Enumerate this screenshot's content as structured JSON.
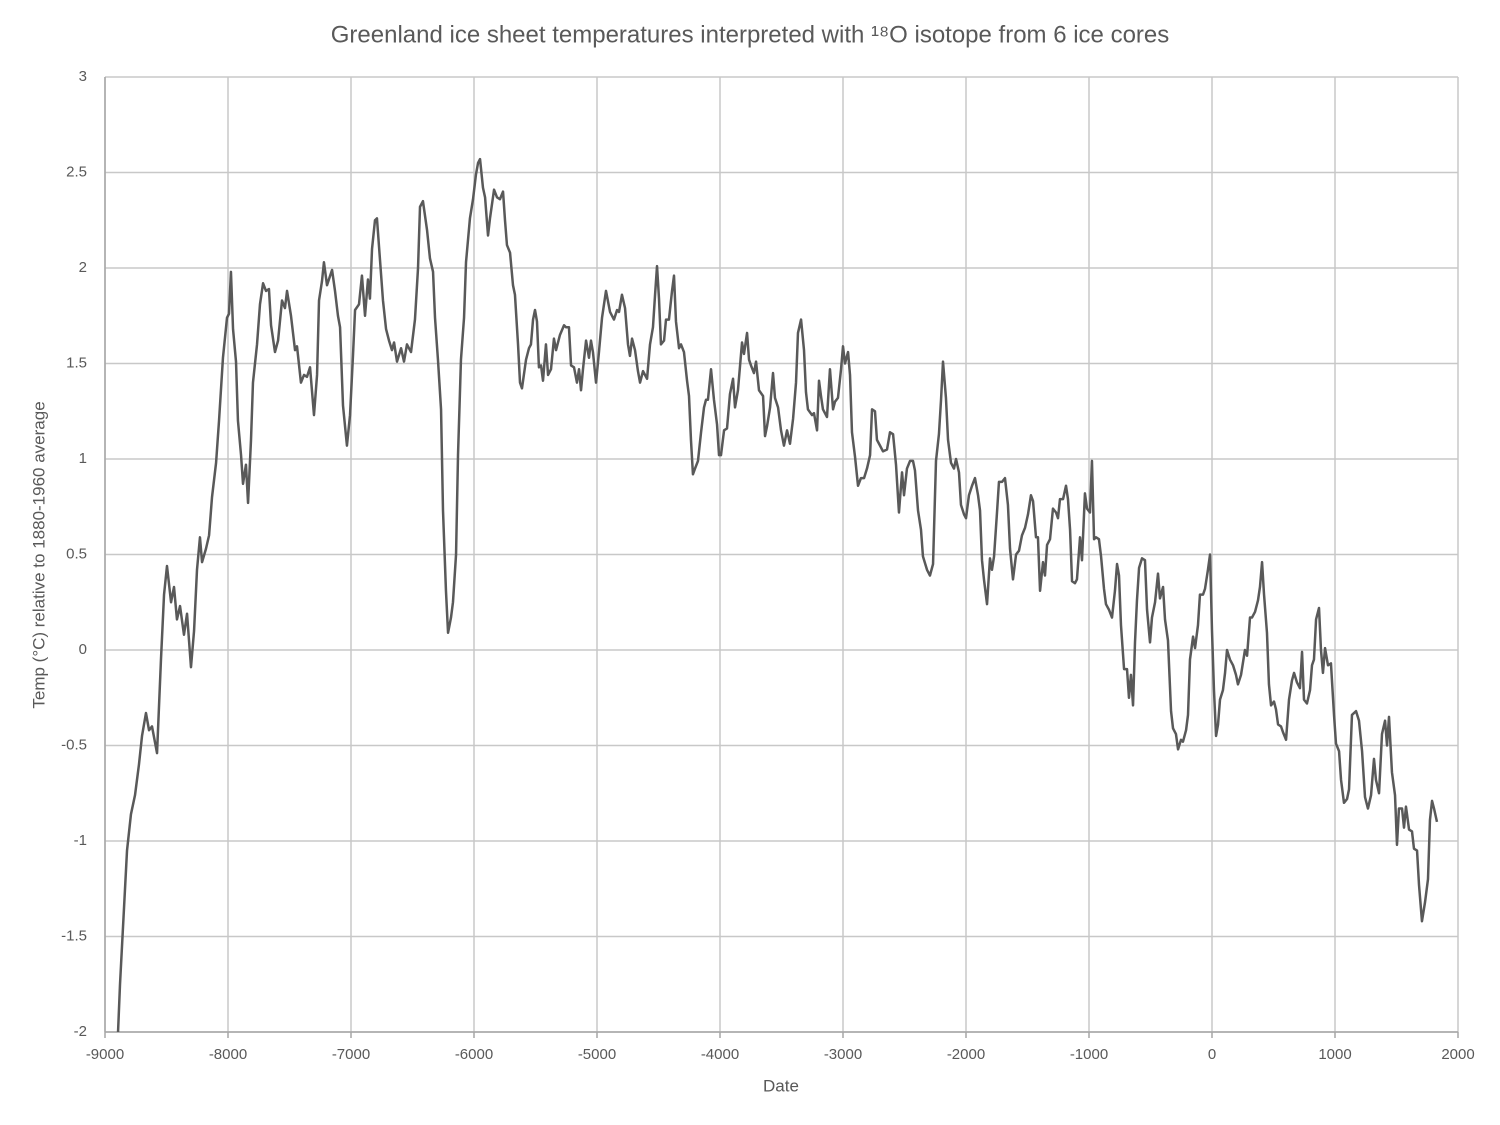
{
  "chart_data": {
    "type": "line",
    "title": "Greenland ice sheet temperatures interpreted with ¹⁸O isotope from 6 ice cores",
    "xlabel": "Date",
    "ylabel": "Temp (°C) relative to 1880-1960 average",
    "color": "#595959",
    "grid": true,
    "xlim": [
      -9000,
      2000
    ],
    "xticks": [
      -9000,
      -8000,
      -7000,
      -6000,
      -5000,
      -4000,
      -3000,
      -2000,
      -1000,
      0,
      1000,
      2000
    ],
    "ylim": [
      -2,
      3
    ],
    "yticks": [
      -2,
      -1.5,
      -1,
      -0.5,
      0,
      0.5,
      1,
      1.5,
      2,
      2.5,
      3
    ],
    "x": [
      -8894,
      -8878,
      -8821,
      -8789,
      -8756,
      -8724,
      -8699,
      -8667,
      -8642,
      -8618,
      -8577,
      -8545,
      -8520,
      -8496,
      -8463,
      -8439,
      -8415,
      -8390,
      -8358,
      -8333,
      -8301,
      -8276,
      -8252,
      -8228,
      -8211,
      -8179,
      -8154,
      -8130,
      -8097,
      -8073,
      -8041,
      -8008,
      -7992,
      -7976,
      -7959,
      -7935,
      -7919,
      -7894,
      -7878,
      -7854,
      -7837,
      -7813,
      -7797,
      -7764,
      -7740,
      -7715,
      -7691,
      -7667,
      -7650,
      -7618,
      -7593,
      -7561,
      -7537,
      -7520,
      -7488,
      -7455,
      -7439,
      -7407,
      -7382,
      -7358,
      -7333,
      -7301,
      -7276,
      -7260,
      -7236,
      -7220,
      -7195,
      -7154,
      -7130,
      -7106,
      -7089,
      -7065,
      -7033,
      -7008,
      -6984,
      -6967,
      -6935,
      -6911,
      -6886,
      -6862,
      -6846,
      -6829,
      -6805,
      -6789,
      -6764,
      -6740,
      -6715,
      -6691,
      -6667,
      -6650,
      -6626,
      -6593,
      -6569,
      -6545,
      -6512,
      -6480,
      -6455,
      -6439,
      -6415,
      -6382,
      -6358,
      -6333,
      -6317,
      -6293,
      -6268,
      -6252,
      -6228,
      -6211,
      -6187,
      -6171,
      -6146,
      -6130,
      -6106,
      -6081,
      -6065,
      -6033,
      -6008,
      -5984,
      -5967,
      -5951,
      -5927,
      -5910,
      -5886,
      -5870,
      -5837,
      -5813,
      -5789,
      -5764,
      -5748,
      -5732,
      -5707,
      -5683,
      -5667,
      -5642,
      -5626,
      -5610,
      -5577,
      -5553,
      -5537,
      -5520,
      -5504,
      -5488,
      -5472,
      -5455,
      -5439,
      -5415,
      -5398,
      -5374,
      -5350,
      -5333,
      -5301,
      -5268,
      -5252,
      -5228,
      -5211,
      -5187,
      -5163,
      -5146,
      -5130,
      -5114,
      -5089,
      -5065,
      -5049,
      -5033,
      -5008,
      -4984,
      -4959,
      -4927,
      -4894,
      -4862,
      -4837,
      -4821,
      -4797,
      -4772,
      -4748,
      -4732,
      -4715,
      -4691,
      -4667,
      -4650,
      -4626,
      -4593,
      -4569,
      -4545,
      -4528,
      -4512,
      -4496,
      -4480,
      -4455,
      -4439,
      -4415,
      -4390,
      -4374,
      -4358,
      -4333,
      -4317,
      -4293,
      -4268,
      -4252,
      -4236,
      -4220,
      -4203,
      -4179,
      -4154,
      -4130,
      -4114,
      -4098,
      -4073,
      -4049,
      -4024,
      -4008,
      -3992,
      -3967,
      -3943,
      -3919,
      -3894,
      -3878,
      -3854,
      -3821,
      -3805,
      -3780,
      -3764,
      -3748,
      -3724,
      -3707,
      -3683,
      -3650,
      -3634,
      -3618,
      -3593,
      -3569,
      -3553,
      -3528,
      -3504,
      -3480,
      -3455,
      -3431,
      -3406,
      -3382,
      -3366,
      -3341,
      -3317,
      -3301,
      -3285,
      -3252,
      -3236,
      -3211,
      -3195,
      -3179,
      -3163,
      -3130,
      -3106,
      -3081,
      -3065,
      -3041,
      -3016,
      -3000,
      -2984,
      -2959,
      -2943,
      -2927,
      -2902,
      -2878,
      -2854,
      -2829,
      -2805,
      -2780,
      -2764,
      -2740,
      -2724,
      -2699,
      -2675,
      -2642,
      -2618,
      -2593,
      -2569,
      -2545,
      -2520,
      -2504,
      -2480,
      -2455,
      -2431,
      -2415,
      -2390,
      -2366,
      -2350,
      -2317,
      -2293,
      -2268,
      -2244,
      -2220,
      -2203,
      -2187,
      -2163,
      -2146,
      -2122,
      -2098,
      -2081,
      -2057,
      -2041,
      -2016,
      -2000,
      -1976,
      -1951,
      -1927,
      -1902,
      -1886,
      -1870,
      -1854,
      -1829,
      -1805,
      -1789,
      -1772,
      -1748,
      -1732,
      -1707,
      -1683,
      -1659,
      -1642,
      -1618,
      -1593,
      -1569,
      -1545,
      -1520,
      -1496,
      -1472,
      -1455,
      -1431,
      -1415,
      -1398,
      -1374,
      -1358,
      -1341,
      -1317,
      -1293,
      -1268,
      -1252,
      -1236,
      -1211,
      -1187,
      -1171,
      -1154,
      -1138,
      -1114,
      -1098,
      -1073,
      -1057,
      -1033,
      -1016,
      -992,
      -976,
      -959,
      -943,
      -919,
      -902,
      -878,
      -862,
      -837,
      -813,
      -789,
      -772,
      -756,
      -740,
      -715,
      -691,
      -675,
      -659,
      -642,
      -626,
      -610,
      -593,
      -569,
      -545,
      -528,
      -504,
      -488,
      -463,
      -439,
      -423,
      -398,
      -382,
      -358,
      -333,
      -317,
      -293,
      -276,
      -252,
      -236,
      -211,
      -195,
      -179,
      -154,
      -138,
      -114,
      -98,
      -73,
      -57,
      -33,
      -16,
      0,
      16,
      33,
      49,
      65,
      89,
      106,
      122,
      146,
      171,
      195,
      211,
      236,
      268,
      285,
      309,
      325,
      350,
      374,
      390,
      407,
      423,
      447,
      463,
      480,
      504,
      520,
      537,
      561,
      577,
      602,
      626,
      650,
      667,
      691,
      715,
      732,
      748,
      772,
      797,
      813,
      829,
      846,
      870,
      886,
      902,
      919,
      943,
      967,
      992,
      1008,
      1033,
      1049,
      1073,
      1098,
      1114,
      1138,
      1171,
      1195,
      1220,
      1244,
      1268,
      1293,
      1317,
      1333,
      1358,
      1382,
      1407,
      1423,
      1439,
      1463,
      1488,
      1504,
      1520,
      1545,
      1561,
      1577,
      1602,
      1626,
      1642,
      1667,
      1683,
      1707,
      1732,
      1756,
      1772,
      1789,
      1805,
      1829
    ],
    "values": [
      -2,
      -1.75,
      -1.05,
      -0.86,
      -0.76,
      -0.6,
      -0.45,
      -0.33,
      -0.42,
      -0.4,
      -0.54,
      -0.05,
      0.29,
      0.44,
      0.25,
      0.33,
      0.16,
      0.23,
      0.08,
      0.19,
      -0.09,
      0.1,
      0.42,
      0.59,
      0.46,
      0.53,
      0.6,
      0.8,
      0.98,
      1.2,
      1.53,
      1.74,
      1.76,
      1.98,
      1.68,
      1.51,
      1.2,
      1.02,
      0.87,
      0.97,
      0.77,
      1.1,
      1.4,
      1.6,
      1.81,
      1.92,
      1.88,
      1.89,
      1.7,
      1.56,
      1.62,
      1.83,
      1.79,
      1.88,
      1.75,
      1.57,
      1.59,
      1.4,
      1.44,
      1.43,
      1.48,
      1.23,
      1.44,
      1.83,
      1.93,
      2.03,
      1.91,
      1.99,
      1.88,
      1.75,
      1.69,
      1.28,
      1.07,
      1.23,
      1.54,
      1.78,
      1.81,
      1.96,
      1.75,
      1.94,
      1.84,
      2.1,
      2.25,
      2.26,
      2.04,
      1.83,
      1.68,
      1.62,
      1.57,
      1.61,
      1.51,
      1.58,
      1.51,
      1.6,
      1.56,
      1.73,
      2.0,
      2.32,
      2.35,
      2.2,
      2.05,
      1.98,
      1.74,
      1.52,
      1.26,
      0.73,
      0.31,
      0.09,
      0.17,
      0.25,
      0.5,
      1.02,
      1.52,
      1.74,
      2.03,
      2.26,
      2.36,
      2.49,
      2.55,
      2.57,
      2.42,
      2.37,
      2.17,
      2.26,
      2.41,
      2.37,
      2.36,
      2.4,
      2.25,
      2.12,
      2.08,
      1.91,
      1.86,
      1.6,
      1.4,
      1.37,
      1.52,
      1.58,
      1.6,
      1.73,
      1.78,
      1.72,
      1.48,
      1.49,
      1.41,
      1.6,
      1.44,
      1.47,
      1.63,
      1.57,
      1.65,
      1.7,
      1.69,
      1.69,
      1.49,
      1.48,
      1.4,
      1.47,
      1.36,
      1.47,
      1.62,
      1.53,
      1.62,
      1.56,
      1.4,
      1.56,
      1.74,
      1.88,
      1.77,
      1.73,
      1.78,
      1.77,
      1.86,
      1.79,
      1.6,
      1.54,
      1.63,
      1.57,
      1.46,
      1.4,
      1.46,
      1.42,
      1.6,
      1.69,
      1.86,
      2.01,
      1.84,
      1.6,
      1.62,
      1.73,
      1.73,
      1.88,
      1.96,
      1.72,
      1.58,
      1.6,
      1.56,
      1.41,
      1.33,
      1.1,
      0.92,
      0.95,
      0.99,
      1.14,
      1.27,
      1.31,
      1.31,
      1.47,
      1.31,
      1.18,
      1.02,
      1.02,
      1.15,
      1.16,
      1.34,
      1.42,
      1.27,
      1.36,
      1.61,
      1.55,
      1.66,
      1.52,
      1.49,
      1.45,
      1.51,
      1.36,
      1.33,
      1.12,
      1.17,
      1.27,
      1.45,
      1.32,
      1.27,
      1.15,
      1.07,
      1.15,
      1.08,
      1.21,
      1.4,
      1.66,
      1.73,
      1.57,
      1.35,
      1.26,
      1.23,
      1.24,
      1.15,
      1.41,
      1.33,
      1.26,
      1.22,
      1.47,
      1.26,
      1.3,
      1.32,
      1.47,
      1.59,
      1.5,
      1.56,
      1.44,
      1.14,
      1.01,
      0.86,
      0.9,
      0.9,
      0.95,
      1.02,
      1.26,
      1.25,
      1.1,
      1.07,
      1.04,
      1.05,
      1.14,
      1.13,
      0.97,
      0.72,
      0.93,
      0.81,
      0.95,
      0.99,
      0.99,
      0.94,
      0.73,
      0.63,
      0.49,
      0.42,
      0.39,
      0.45,
      0.99,
      1.13,
      1.31,
      1.51,
      1.32,
      1.1,
      0.98,
      0.95,
      1.0,
      0.93,
      0.76,
      0.71,
      0.69,
      0.81,
      0.86,
      0.9,
      0.81,
      0.73,
      0.47,
      0.37,
      0.24,
      0.48,
      0.42,
      0.49,
      0.72,
      0.88,
      0.88,
      0.9,
      0.76,
      0.53,
      0.37,
      0.5,
      0.52,
      0.6,
      0.64,
      0.71,
      0.81,
      0.78,
      0.59,
      0.59,
      0.31,
      0.46,
      0.39,
      0.55,
      0.58,
      0.74,
      0.72,
      0.69,
      0.79,
      0.79,
      0.86,
      0.79,
      0.63,
      0.36,
      0.35,
      0.37,
      0.59,
      0.47,
      0.82,
      0.74,
      0.72,
      0.99,
      0.58,
      0.59,
      0.58,
      0.49,
      0.32,
      0.24,
      0.21,
      0.17,
      0.31,
      0.45,
      0.39,
      0.13,
      -0.1,
      -0.1,
      -0.25,
      -0.13,
      -0.29,
      0.04,
      0.26,
      0.43,
      0.48,
      0.47,
      0.21,
      0.04,
      0.17,
      0.25,
      0.4,
      0.27,
      0.33,
      0.16,
      0.05,
      -0.32,
      -0.41,
      -0.44,
      -0.52,
      -0.47,
      -0.48,
      -0.42,
      -0.34,
      -0.05,
      0.07,
      0.01,
      0.13,
      0.29,
      0.29,
      0.32,
      0.42,
      0.5,
      0.1,
      -0.21,
      -0.45,
      -0.39,
      -0.26,
      -0.21,
      -0.12,
      0.0,
      -0.05,
      -0.08,
      -0.13,
      -0.18,
      -0.13,
      0.0,
      -0.03,
      0.17,
      0.17,
      0.2,
      0.26,
      0.33,
      0.46,
      0.29,
      0.09,
      -0.18,
      -0.29,
      -0.27,
      -0.31,
      -0.39,
      -0.4,
      -0.43,
      -0.47,
      -0.26,
      -0.16,
      -0.12,
      -0.17,
      -0.2,
      -0.01,
      -0.26,
      -0.28,
      -0.21,
      -0.08,
      -0.05,
      0.16,
      0.22,
      0.0,
      -0.12,
      0.01,
      -0.08,
      -0.07,
      -0.34,
      -0.49,
      -0.53,
      -0.68,
      -0.8,
      -0.78,
      -0.73,
      -0.34,
      -0.32,
      -0.37,
      -0.53,
      -0.77,
      -0.83,
      -0.76,
      -0.57,
      -0.68,
      -0.75,
      -0.44,
      -0.37,
      -0.5,
      -0.35,
      -0.64,
      -0.76,
      -1.02,
      -0.83,
      -0.83,
      -0.93,
      -0.82,
      -0.94,
      -0.95,
      -1.04,
      -1.05,
      -1.23,
      -1.42,
      -1.32,
      -1.2,
      -0.89,
      -0.79,
      -0.83,
      -0.9
    ]
  }
}
